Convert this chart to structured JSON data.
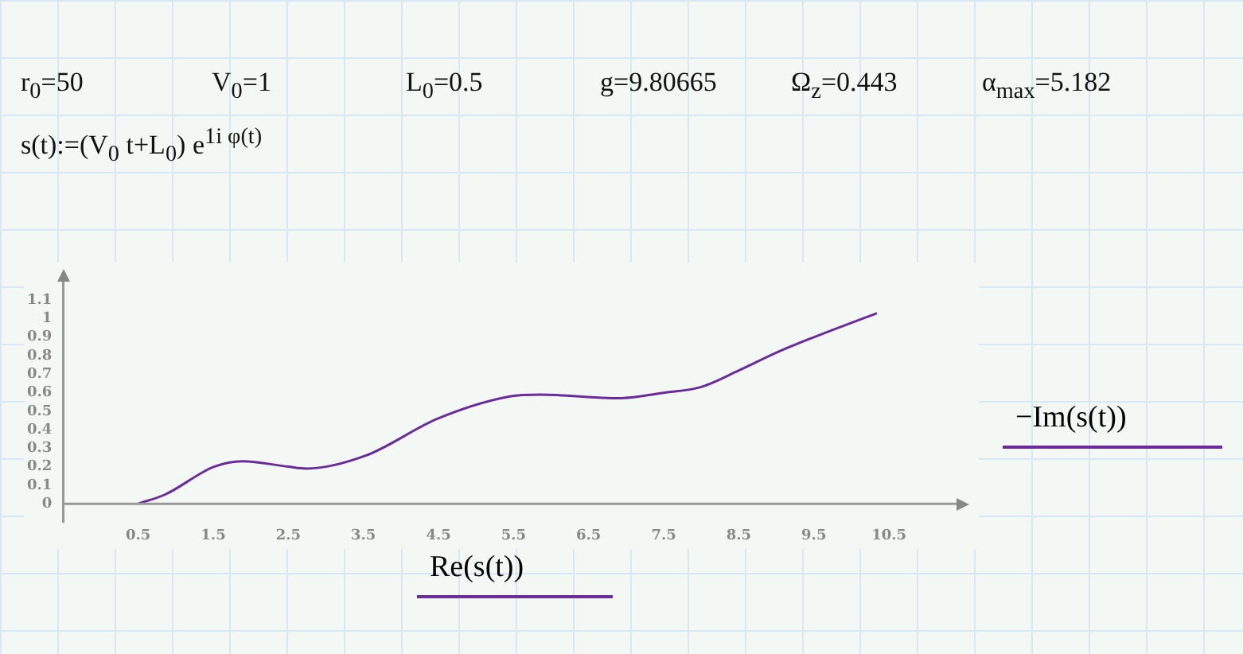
{
  "chart_data": {
    "type": "line",
    "xlabel": "Re(s(t))",
    "ylabel": "−Im(s(t))",
    "annotations": [
      "r$_{0}$=50",
      "V$_{0}$=1",
      "L$_{0}$=0.5",
      "g=9.80665",
      "Ω$_{z}$=0.443",
      "α$_{max}$=5.182",
      "s(t):=(V$_{0}$ t+L$_{0}$) e$^{1i φ(t)}$"
    ],
    "x": [
      0.5,
      0.86,
      1.51,
      1.89,
      2.5,
      2.74,
      3.53,
      4.49,
      5.45,
      5.86,
      6.89,
      7.51,
      7.99,
      8.5,
      9.02,
      9.5,
      10.34
    ],
    "series": [
      {
        "color": "#6a2c9a",
        "values": [
          0,
          0.05,
          0.2,
          0.23,
          0.2,
          0.19,
          0.26,
          0.46,
          0.58,
          0.59,
          0.57,
          0.6,
          0.63,
          0.72,
          0.82,
          0.9,
          1.03
        ]
      }
    ],
    "marker": "none",
    "line_style": "solid",
    "xlim": [
      -0.5,
      11.4
    ],
    "xticks": [
      0.5,
      1.5,
      2.5,
      3.5,
      4.5,
      5.5,
      6.5,
      7.5,
      8.5,
      9.5,
      10.5
    ],
    "ylim": [
      -0.1,
      1.2
    ],
    "yticks": [
      0,
      0.1,
      0.2,
      0.3,
      0.4,
      0.5,
      0.6,
      0.7,
      0.8,
      0.9,
      1,
      1.1
    ]
  }
}
